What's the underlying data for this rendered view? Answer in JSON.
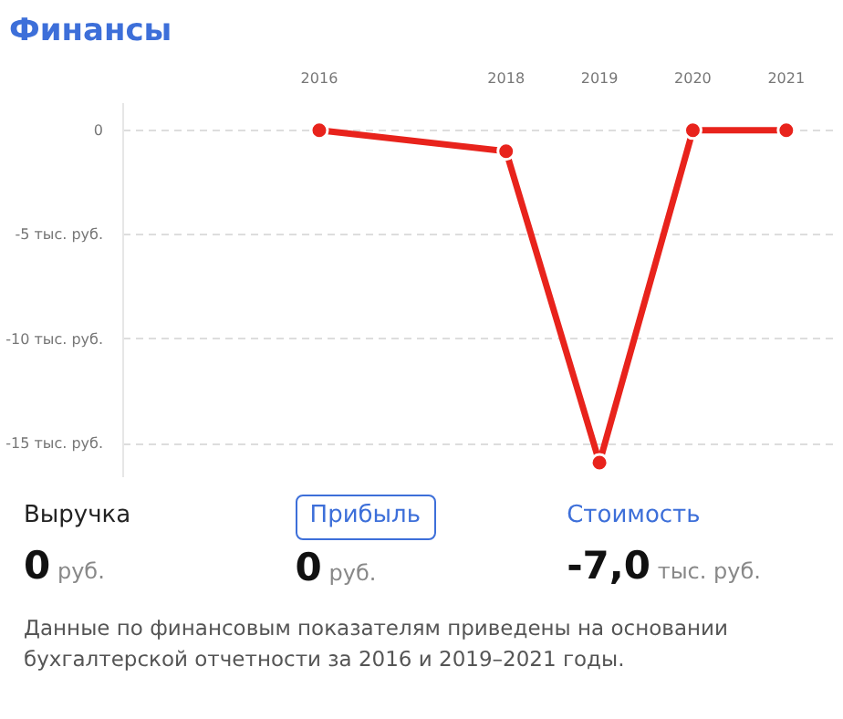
{
  "chart_data": {
    "type": "line",
    "title": "Финансы",
    "x": [
      2016,
      2018,
      2019,
      2020,
      2021
    ],
    "series": [
      {
        "color": "#e8231c",
        "values": [
          0,
          -1,
          -15.9,
          0,
          0
        ]
      }
    ],
    "xlim": [
      2013.9,
      2021.5
    ],
    "xticks": [
      2016,
      2018,
      2019,
      2020,
      2021
    ],
    "ylim": [
      -16.6,
      1.3
    ],
    "yticks": [
      0,
      {
        "value": -5,
        "label": "-5 тыс. руб."
      },
      {
        "value": -10,
        "label": "-10 тыс. руб."
      },
      {
        "value": -15,
        "label": "-15 тыс. руб."
      }
    ],
    "grid": "y",
    "marker": "circle",
    "line_style": "solid",
    "annotations": [
      "Выручка",
      "0 руб.",
      "Прибыль",
      "0 руб.",
      "Стоимость",
      "-7,0 тыс. руб.",
      "Данные по финансовым показателям приведены на основании бухгалтерской отчетности за 2016 и 2019–2021 годы."
    ]
  }
}
